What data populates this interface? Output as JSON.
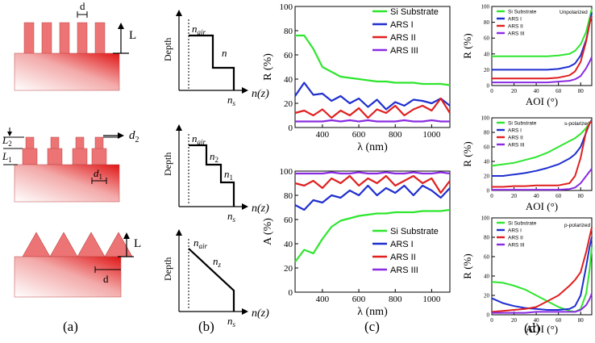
{
  "panel_labels": {
    "a": "(a)",
    "b": "(b)",
    "c": "(c)",
    "d": "(d)"
  },
  "structures": {
    "cylinder": {
      "d": "d",
      "L": "L"
    },
    "stepped": {
      "L2": "L",
      "L2_sub": "2",
      "L1": "L",
      "L1_sub": "1",
      "d2": "d",
      "d2_sub": "2",
      "d1": "d",
      "d1_sub": "1"
    },
    "cone": {
      "L": "L",
      "d": "d"
    }
  },
  "profiles": {
    "depth_label": "Depth",
    "nz_label": "n(z)",
    "n_air": "n",
    "n_air_sub": "air",
    "n_s": "n",
    "n_s_sub": "s",
    "p1": {
      "n": "n"
    },
    "p2": {
      "n2": "n",
      "n2_sub": "2",
      "n1": "n",
      "n1_sub": "1"
    },
    "p3": {
      "nz": "n",
      "nz_sub": "z"
    }
  },
  "colors": {
    "si": "#2ee62e",
    "ars1": "#1f2fcf",
    "ars2": "#e01f1f",
    "ars3": "#8a2be2"
  },
  "chart_data": [
    {
      "id": "c-top",
      "type": "line",
      "xlabel": "λ (nm)",
      "ylabel": "R (%)",
      "xlim": [
        250,
        1100
      ],
      "ylim": [
        0,
        100
      ],
      "xticks": [
        400,
        600,
        800,
        1000
      ],
      "yticks": [
        0,
        20,
        40,
        60,
        80,
        100
      ],
      "legend": {
        "position": "top-right",
        "entries": [
          "Si Substrate",
          "ARS I",
          "ARS II",
          "ARS III"
        ]
      },
      "x": [
        250,
        300,
        350,
        400,
        450,
        500,
        550,
        600,
        650,
        700,
        750,
        800,
        850,
        900,
        950,
        1000,
        1050,
        1100
      ],
      "series": [
        {
          "name": "Si Substrate",
          "values": [
            76,
            76,
            65,
            50,
            46,
            42,
            41,
            40,
            39,
            38,
            38,
            37,
            37,
            37,
            36,
            36,
            36,
            35
          ]
        },
        {
          "name": "ARS I",
          "values": [
            26,
            37,
            27,
            28,
            22,
            26,
            20,
            24,
            17,
            23,
            15,
            21,
            18,
            23,
            22,
            20,
            24,
            18
          ]
        },
        {
          "name": "ARS II",
          "values": [
            12,
            14,
            10,
            15,
            8,
            14,
            10,
            16,
            8,
            15,
            12,
            18,
            10,
            15,
            18,
            14,
            24,
            12
          ]
        },
        {
          "name": "ARS III",
          "values": [
            5,
            5,
            5,
            5,
            6,
            5,
            6,
            5,
            6,
            5,
            5,
            5,
            6,
            5,
            5,
            6,
            5,
            5
          ]
        }
      ]
    },
    {
      "id": "c-bottom",
      "type": "line",
      "xlabel": "λ (nm)",
      "ylabel": "A (%)",
      "xlim": [
        250,
        1100
      ],
      "ylim": [
        0,
        100
      ],
      "xticks": [
        400,
        600,
        800,
        1000
      ],
      "yticks": [
        0,
        20,
        40,
        60,
        80,
        100
      ],
      "legend": {
        "position": "bottom-right",
        "entries": [
          "Si Substrate",
          "ARS I",
          "ARS II",
          "ARS III"
        ]
      },
      "x": [
        250,
        300,
        350,
        400,
        450,
        500,
        550,
        600,
        650,
        700,
        750,
        800,
        850,
        900,
        950,
        1000,
        1050,
        1100
      ],
      "series": [
        {
          "name": "Si Substrate",
          "values": [
            25,
            35,
            32,
            44,
            54,
            59,
            61,
            63,
            64,
            65,
            65,
            66,
            66,
            66,
            67,
            67,
            67,
            68
          ]
        },
        {
          "name": "ARS I",
          "values": [
            72,
            68,
            76,
            74,
            80,
            78,
            84,
            80,
            88,
            80,
            86,
            82,
            88,
            80,
            88,
            84,
            78,
            86
          ]
        },
        {
          "name": "ARS II",
          "values": [
            90,
            88,
            92,
            86,
            94,
            90,
            96,
            88,
            94,
            90,
            96,
            88,
            92,
            96,
            90,
            94,
            82,
            92
          ]
        },
        {
          "name": "ARS III",
          "values": [
            98,
            98,
            98,
            98,
            99,
            98,
            98,
            99,
            98,
            98,
            99,
            98,
            98,
            99,
            98,
            98,
            99,
            98
          ]
        }
      ]
    },
    {
      "id": "d-1",
      "type": "line",
      "title": "Unpolarized",
      "xlabel": "AOI (°)",
      "ylabel": "R (%)",
      "xlim": [
        0,
        90
      ],
      "ylim": [
        0,
        100
      ],
      "xticks": [
        0,
        20,
        40,
        60,
        80
      ],
      "yticks": [
        0,
        20,
        40,
        60,
        80,
        100
      ],
      "legend": {
        "position": "top-left",
        "entries": [
          "Si Substrate",
          "ARS I",
          "ARS II",
          "ARS III"
        ]
      },
      "x": [
        0,
        10,
        20,
        30,
        40,
        50,
        60,
        70,
        75,
        80,
        85,
        88,
        90
      ],
      "series": [
        {
          "name": "Si Substrate",
          "values": [
            37,
            37,
            37,
            37,
            37,
            37,
            38,
            40,
            44,
            52,
            68,
            85,
            97
          ]
        },
        {
          "name": "ARS I",
          "values": [
            20,
            20,
            20,
            20,
            20,
            20,
            21,
            24,
            28,
            38,
            58,
            78,
            92
          ]
        },
        {
          "name": "ARS II",
          "values": [
            9,
            9,
            9,
            9,
            9,
            9,
            10,
            13,
            18,
            30,
            56,
            78,
            88
          ]
        },
        {
          "name": "ARS III",
          "values": [
            4,
            4,
            4,
            4,
            4,
            4,
            5,
            6,
            8,
            12,
            22,
            30,
            36
          ]
        }
      ]
    },
    {
      "id": "d-2",
      "type": "line",
      "title": "s-polarized",
      "xlabel": "AOI (°)",
      "ylabel": "R (%)",
      "xlim": [
        0,
        90
      ],
      "ylim": [
        0,
        100
      ],
      "xticks": [
        0,
        20,
        40,
        60,
        80
      ],
      "yticks": [
        0,
        20,
        40,
        60,
        80,
        100
      ],
      "legend": {
        "position": "top-left",
        "entries": [
          "Si Substrate",
          "ARS I",
          "ARS II",
          "ARS III"
        ]
      },
      "x": [
        0,
        10,
        20,
        30,
        40,
        50,
        60,
        70,
        75,
        80,
        85,
        88,
        90
      ],
      "series": [
        {
          "name": "Si Substrate",
          "values": [
            34,
            36,
            38,
            42,
            46,
            52,
            60,
            68,
            72,
            78,
            86,
            93,
            97
          ]
        },
        {
          "name": "ARS I",
          "values": [
            20,
            20,
            22,
            24,
            27,
            31,
            36,
            44,
            50,
            60,
            80,
            92,
            97
          ]
        },
        {
          "name": "ARS II",
          "values": [
            5,
            5,
            6,
            6,
            7,
            7,
            7,
            10,
            20,
            45,
            82,
            92,
            96
          ]
        },
        {
          "name": "ARS III",
          "values": [
            1,
            1,
            1,
            1,
            1,
            1,
            1,
            2,
            4,
            10,
            20,
            26,
            30
          ]
        }
      ]
    },
    {
      "id": "d-3",
      "type": "line",
      "title": "p-polarized",
      "xlabel": "AOI (°)",
      "ylabel": "R (%)",
      "xlim": [
        0,
        90
      ],
      "ylim": [
        0,
        100
      ],
      "xticks": [
        0,
        20,
        40,
        60,
        80
      ],
      "yticks": [
        0,
        20,
        40,
        60,
        80,
        100
      ],
      "legend": {
        "position": "top-left",
        "entries": [
          "Si Substrate",
          "ARS I",
          "ARS II",
          "ARS III"
        ]
      },
      "x": [
        0,
        10,
        20,
        30,
        40,
        50,
        60,
        70,
        75,
        80,
        85,
        88,
        90
      ],
      "series": [
        {
          "name": "Si Substrate",
          "values": [
            34,
            33,
            30,
            26,
            20,
            14,
            8,
            4,
            3,
            6,
            22,
            46,
            70
          ]
        },
        {
          "name": "ARS I",
          "values": [
            17,
            12,
            9,
            7,
            6,
            5,
            5,
            6,
            9,
            20,
            50,
            70,
            80
          ]
        },
        {
          "name": "ARS II",
          "values": [
            3,
            4,
            5,
            6,
            8,
            14,
            20,
            30,
            36,
            44,
            65,
            80,
            90
          ]
        },
        {
          "name": "ARS III",
          "values": [
            2,
            2,
            2,
            2,
            3,
            3,
            3,
            3,
            3,
            5,
            10,
            16,
            22
          ]
        }
      ]
    }
  ]
}
